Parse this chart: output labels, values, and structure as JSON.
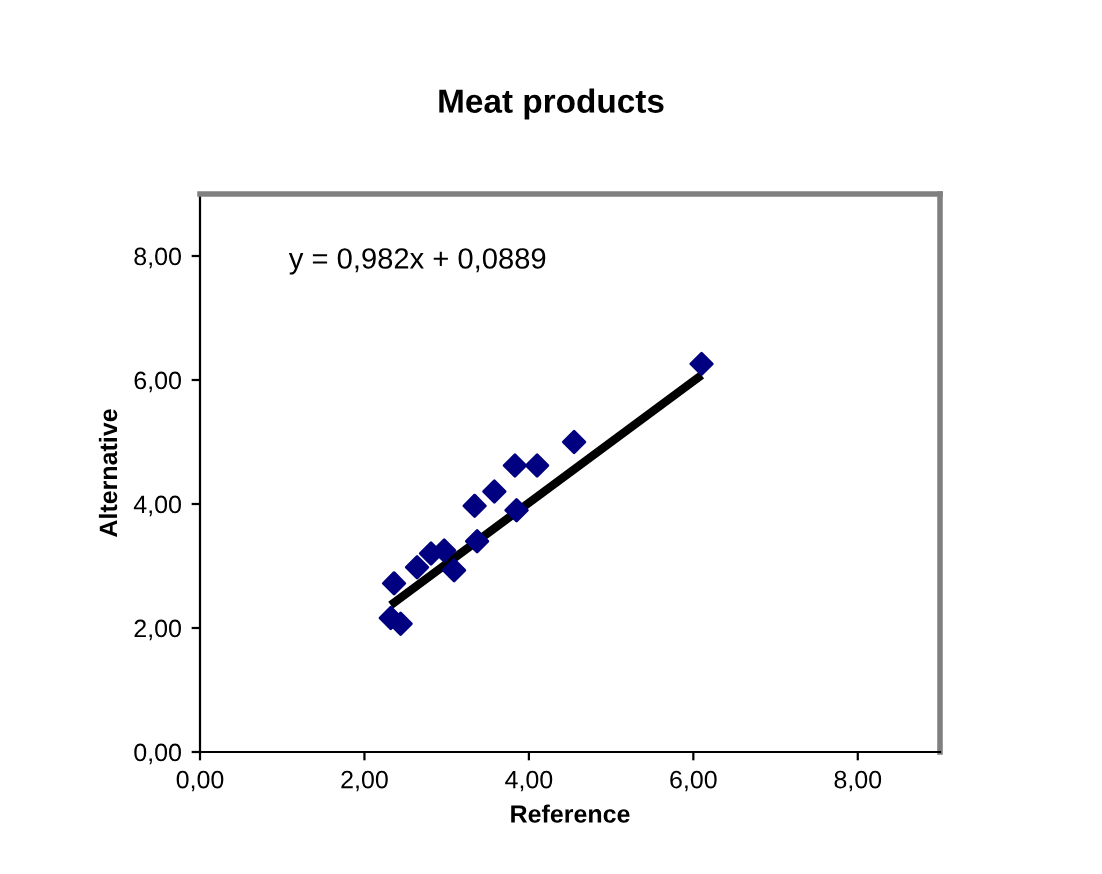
{
  "chart_data": {
    "type": "scatter",
    "title": "Meat products",
    "xlabel": "Reference",
    "ylabel": "Alternative",
    "annotations": [
      "y = 0,982x + 0,0889"
    ],
    "xlim": [
      0,
      9
    ],
    "ylim": [
      0,
      9
    ],
    "xticks": [
      {
        "value": 0,
        "label": "0,00"
      },
      {
        "value": 2,
        "label": "2,00"
      },
      {
        "value": 4,
        "label": "4,00"
      },
      {
        "value": 6,
        "label": "6,00"
      },
      {
        "value": 8,
        "label": "8,00"
      }
    ],
    "yticks": [
      {
        "value": 0,
        "label": "0,00"
      },
      {
        "value": 2,
        "label": "2,00"
      },
      {
        "value": 4,
        "label": "4,00"
      },
      {
        "value": 6,
        "label": "6,00"
      },
      {
        "value": 8,
        "label": "8,00"
      }
    ],
    "grid": false,
    "legend": false,
    "series": [
      {
        "marker": "diamond",
        "color": "#000080",
        "x": [
          2.32,
          2.44,
          2.36,
          2.64,
          2.81,
          2.97,
          3.09,
          3.37,
          3.34,
          3.58,
          3.85,
          3.83,
          4.1,
          4.55,
          6.1
        ],
        "values": [
          2.16,
          2.07,
          2.72,
          2.98,
          3.2,
          3.25,
          2.93,
          3.4,
          3.97,
          4.2,
          3.9,
          4.62,
          4.62,
          5.0,
          6.26
        ]
      },
      {
        "type": "line",
        "marker": "none",
        "color": "#000000",
        "x": [
          2.32,
          6.1
        ],
        "values": [
          2.37,
          6.08
        ]
      }
    ]
  }
}
